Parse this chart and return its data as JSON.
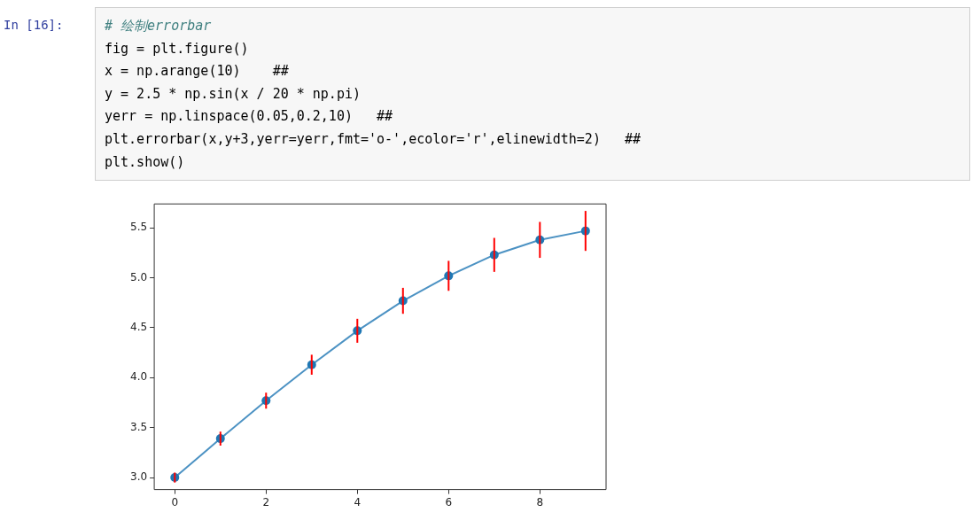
{
  "chart_data": {
    "type": "line",
    "annotations": [
      "In [16]:",
      "# 绘制errorbar",
      "fig = plt.figure()",
      "x = np.arange(10)    ##",
      "y = 2.5 * np.sin(x / 20 * np.pi)",
      "yerr = np.linspace(0.05,0.2,10)   ##",
      "plt.errorbar(x,y+3,yerr=yerr,fmt='o-',ecolor='r',elinewidth=2)   ##",
      "plt.show()"
    ],
    "x": [
      0,
      1,
      2,
      3,
      4,
      5,
      6,
      7,
      8,
      9
    ],
    "series": [
      {
        "color": "#1f77b4",
        "values": [
          3.0,
          3.39,
          3.77,
          4.13,
          4.47,
          4.77,
          5.02,
          5.23,
          5.38,
          5.47
        ],
        "errors": [
          0.05,
          0.07,
          0.08,
          0.1,
          0.12,
          0.13,
          0.15,
          0.17,
          0.18,
          0.2
        ]
      }
    ],
    "xlim": [
      -0.45,
      9.45
    ],
    "xticks": [
      0,
      2,
      4,
      6,
      8
    ],
    "ylim": [
      2.88,
      5.74
    ],
    "yticks": [
      {
        "value": 3,
        "label": "3.0"
      },
      3.5,
      {
        "value": 4,
        "label": "4.0"
      },
      4.5,
      {
        "value": 5,
        "label": "5.0"
      },
      5.5
    ],
    "grid": false,
    "legend": false,
    "marker": "circle",
    "line_style": "solid"
  }
}
